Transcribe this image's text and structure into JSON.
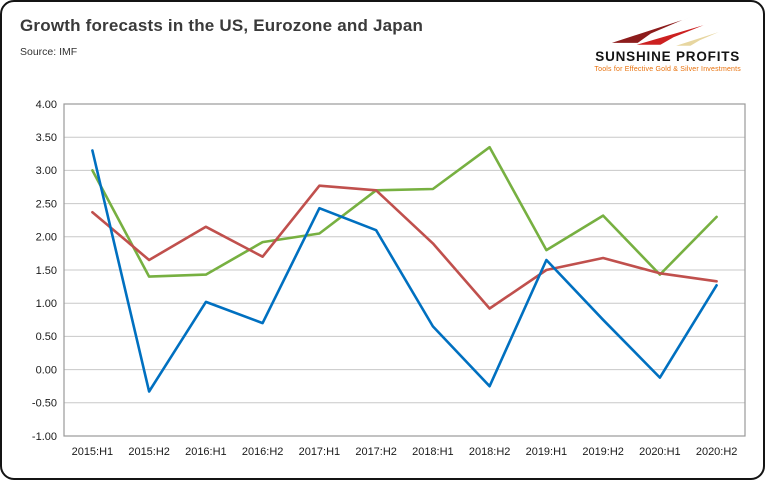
{
  "header": {
    "title": "Growth forecasts in the US, Eurozone and Japan",
    "source": "Source: IMF"
  },
  "logo": {
    "name": "SUNSHINE PROFITS",
    "tagline": "Tools for Effective Gold & Silver Investments",
    "tagline_color": "#e8700a"
  },
  "chart_data": {
    "type": "line",
    "title": "Growth forecasts in the US, Eurozone and Japan",
    "source": "Source: IMF",
    "categories": [
      "2015:H1",
      "2015:H2",
      "2016:H1",
      "2016:H2",
      "2017:H1",
      "2017:H2",
      "2018:H1",
      "2018:H2",
      "2019:H1",
      "2019:H2",
      "2020:H1",
      "2020:H2"
    ],
    "series": [
      {
        "name": "green-line",
        "color": "#77b041",
        "values": [
          3.0,
          1.4,
          1.43,
          1.92,
          2.05,
          2.7,
          2.72,
          3.35,
          1.8,
          2.32,
          1.43,
          2.3
        ]
      },
      {
        "name": "red-line",
        "color": "#c0504d",
        "values": [
          2.37,
          1.65,
          2.15,
          1.7,
          2.77,
          2.7,
          1.9,
          0.92,
          1.5,
          1.68,
          1.45,
          1.33
        ]
      },
      {
        "name": "blue-line",
        "color": "#0070c0",
        "values": [
          3.3,
          -0.33,
          1.02,
          0.7,
          2.43,
          2.1,
          0.65,
          -0.25,
          1.65,
          0.75,
          -0.12,
          1.27
        ]
      }
    ],
    "ylim": [
      -1.0,
      4.0
    ],
    "ytick_step": 0.5,
    "ytick_labels": [
      "4.00",
      "3.50",
      "3.00",
      "2.50",
      "2.00",
      "1.50",
      "1.00",
      "0.50",
      "0.00",
      "-0.50",
      "-1.00"
    ],
    "grid": true,
    "legend": "none",
    "colors": {
      "grid": "#c8c8c8",
      "plot_border": "#9a9a9a",
      "tick_text": "#1a1a1a"
    }
  }
}
